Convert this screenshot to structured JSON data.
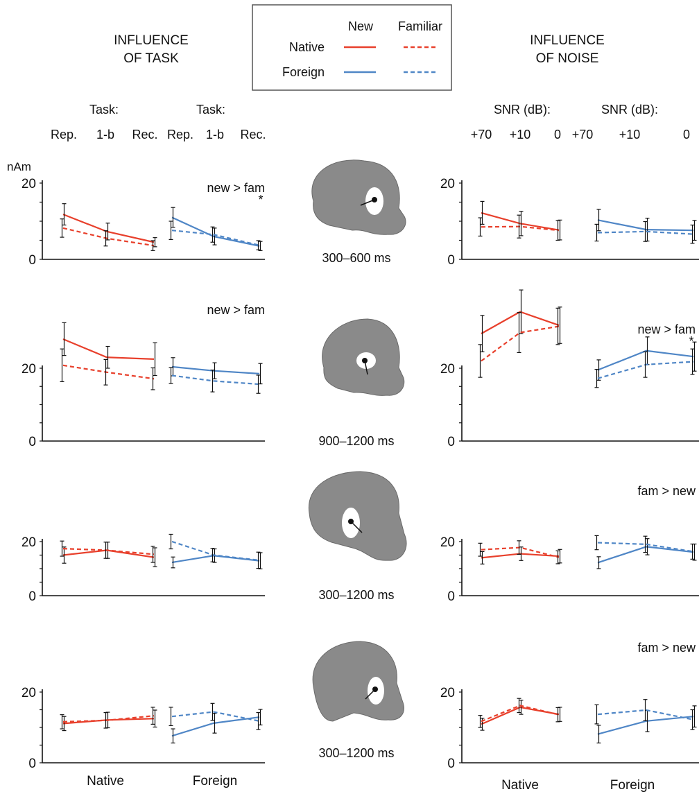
{
  "headers": {
    "task_title_line1": "INFLUENCE",
    "task_title_line2": "OF TASK",
    "noise_title_line1": "INFLUENCE",
    "noise_title_line2": "OF NOISE",
    "task_label": "Task:",
    "task_levels": [
      "Rep.",
      "1-b",
      "Rec."
    ],
    "snr_label": "SNR (dB):",
    "snr_levels": [
      "+70",
      "+10",
      "0"
    ],
    "unit_label": "nAm"
  },
  "legend": {
    "col_new": "New",
    "col_familiar": "Familiar",
    "row_native": "Native",
    "row_foreign": "Foreign"
  },
  "colors": {
    "native": "#e8402c",
    "foreign": "#4f86c6",
    "axis": "#111111",
    "brain": "#888888"
  },
  "xlabels": {
    "native": "Native",
    "foreign": "Foreign"
  },
  "time_windows": [
    "300–600 ms",
    "900–1200 ms",
    "300–1200 ms",
    "300–1200 ms"
  ],
  "chart_data": [
    {
      "type": "line",
      "panel": "task",
      "row": 1,
      "annotation": "new > fam",
      "significance": "*",
      "y_ticks": [
        0,
        20
      ],
      "ylim": [
        0,
        20
      ],
      "series": [
        {
          "name": "Native New",
          "group": "Native",
          "condition": "New",
          "values": [
            11.8,
            7.3,
            4.5
          ],
          "errors": [
            2.8,
            2.2,
            1.2
          ]
        },
        {
          "name": "Native Familiar",
          "group": "Native",
          "condition": "Familiar",
          "values": [
            8.2,
            5.5,
            3.6
          ],
          "errors": [
            2.4,
            2.0,
            1.3
          ]
        },
        {
          "name": "Foreign New",
          "group": "Foreign",
          "condition": "New",
          "values": [
            11.0,
            6.0,
            3.5
          ],
          "errors": [
            2.6,
            2.2,
            1.2
          ]
        },
        {
          "name": "Foreign Familiar",
          "group": "Foreign",
          "condition": "Familiar",
          "values": [
            7.6,
            6.5,
            3.7
          ],
          "errors": [
            2.4,
            2.0,
            1.2
          ]
        }
      ]
    },
    {
      "type": "line",
      "panel": "noise",
      "row": 1,
      "annotation": "",
      "significance": "",
      "y_ticks": [
        0,
        20
      ],
      "ylim": [
        0,
        20
      ],
      "series": [
        {
          "name": "Native New",
          "group": "Native",
          "condition": "New",
          "values": [
            12.2,
            9.4,
            7.7
          ],
          "errors": [
            3.0,
            3.2,
            2.6
          ]
        },
        {
          "name": "Native Familiar",
          "group": "Native",
          "condition": "Familiar",
          "values": [
            8.5,
            8.6,
            7.6
          ],
          "errors": [
            2.4,
            3.0,
            2.6
          ]
        },
        {
          "name": "Foreign New",
          "group": "Foreign",
          "condition": "New",
          "values": [
            10.3,
            7.8,
            7.6
          ],
          "errors": [
            2.8,
            3.0,
            2.6
          ]
        },
        {
          "name": "Foreign Familiar",
          "group": "Foreign",
          "condition": "Familiar",
          "values": [
            7.0,
            7.3,
            6.6
          ],
          "errors": [
            2.2,
            2.6,
            2.4
          ]
        }
      ]
    },
    {
      "type": "line",
      "panel": "task",
      "row": 2,
      "annotation": "new > fam",
      "significance": "",
      "y_ticks": [
        0,
        20
      ],
      "ylim": [
        0,
        36
      ],
      "series": [
        {
          "name": "Native New",
          "group": "Native",
          "condition": "New",
          "values": [
            28.0,
            23.0,
            22.5
          ],
          "errors": [
            4.5,
            3.0,
            4.5
          ]
        },
        {
          "name": "Native Familiar",
          "group": "Native",
          "condition": "Familiar",
          "values": [
            20.8,
            18.9,
            17.1
          ],
          "errors": [
            4.5,
            3.5,
            3.0
          ]
        },
        {
          "name": "Foreign New",
          "group": "Foreign",
          "condition": "New",
          "values": [
            20.4,
            19.3,
            18.5
          ],
          "errors": [
            2.5,
            2.2,
            2.8
          ]
        },
        {
          "name": "Foreign Familiar",
          "group": "Foreign",
          "condition": "Familiar",
          "values": [
            18.0,
            16.5,
            15.6
          ],
          "errors": [
            2.2,
            3.0,
            2.5
          ]
        }
      ]
    },
    {
      "type": "line",
      "panel": "noise",
      "row": 2,
      "annotation": "new > fam",
      "significance": "*",
      "y_ticks": [
        0,
        20
      ],
      "ylim": [
        0,
        36
      ],
      "series": [
        {
          "name": "Native New",
          "group": "Native",
          "condition": "New",
          "values": [
            29.5,
            35.5,
            31.8
          ],
          "errors": [
            5.0,
            6.0,
            5.0
          ]
        },
        {
          "name": "Native Familiar",
          "group": "Native",
          "condition": "Familiar",
          "values": [
            22.0,
            29.8,
            31.5
          ],
          "errors": [
            4.5,
            5.5,
            5.0
          ]
        },
        {
          "name": "Foreign New",
          "group": "Foreign",
          "condition": "New",
          "values": [
            19.5,
            24.8,
            23.2
          ],
          "errors": [
            2.8,
            3.8,
            4.0
          ]
        },
        {
          "name": "Foreign Familiar",
          "group": "Foreign",
          "condition": "Familiar",
          "values": [
            17.2,
            21.0,
            21.8
          ],
          "errors": [
            2.5,
            3.5,
            3.5
          ]
        }
      ]
    },
    {
      "type": "line",
      "panel": "task",
      "row": 3,
      "annotation": "",
      "significance": "",
      "y_ticks": [
        0,
        20
      ],
      "ylim": [
        0,
        24
      ],
      "series": [
        {
          "name": "Native New",
          "group": "Native",
          "condition": "New",
          "values": [
            15.0,
            16.8,
            14.2
          ],
          "errors": [
            3.0,
            3.0,
            3.5
          ]
        },
        {
          "name": "Native Familiar",
          "group": "Native",
          "condition": "Familiar",
          "values": [
            17.4,
            16.8,
            15.3
          ],
          "errors": [
            2.8,
            3.0,
            3.0
          ]
        },
        {
          "name": "Foreign New",
          "group": "Foreign",
          "condition": "New",
          "values": [
            12.3,
            14.8,
            12.9
          ],
          "errors": [
            2.0,
            2.5,
            3.0
          ]
        },
        {
          "name": "Foreign Familiar",
          "group": "Foreign",
          "condition": "Familiar",
          "values": [
            20.0,
            15.0,
            13.1
          ],
          "errors": [
            2.7,
            2.5,
            3.0
          ]
        }
      ]
    },
    {
      "type": "line",
      "panel": "noise",
      "row": 3,
      "annotation": "fam > new",
      "significance": "",
      "y_ticks": [
        0,
        20
      ],
      "ylim": [
        0,
        24
      ],
      "series": [
        {
          "name": "Native New",
          "group": "Native",
          "condition": "New",
          "values": [
            14.0,
            15.5,
            14.6
          ],
          "errors": [
            2.3,
            2.5,
            2.5
          ]
        },
        {
          "name": "Native Familiar",
          "group": "Native",
          "condition": "Familiar",
          "values": [
            17.0,
            17.8,
            14.2
          ],
          "errors": [
            2.4,
            2.5,
            2.4
          ]
        },
        {
          "name": "Foreign New",
          "group": "Foreign",
          "condition": "New",
          "values": [
            12.2,
            18.1,
            16.1
          ],
          "errors": [
            2.2,
            3.0,
            3.0
          ]
        },
        {
          "name": "Foreign Familiar",
          "group": "Foreign",
          "condition": "Familiar",
          "values": [
            19.6,
            19.0,
            16.3
          ],
          "errors": [
            2.6,
            3.0,
            2.8
          ]
        }
      ]
    },
    {
      "type": "line",
      "panel": "task",
      "row": 4,
      "annotation": "",
      "significance": "",
      "y_ticks": [
        0,
        20
      ],
      "ylim": [
        0,
        20
      ],
      "series": [
        {
          "name": "Native New",
          "group": "Native",
          "condition": "New",
          "values": [
            11.1,
            12.1,
            12.5
          ],
          "errors": [
            2.0,
            2.2,
            2.4
          ]
        },
        {
          "name": "Native Familiar",
          "group": "Native",
          "condition": "Familiar",
          "values": [
            11.6,
            12.0,
            13.3
          ],
          "errors": [
            2.0,
            2.2,
            2.4
          ]
        },
        {
          "name": "Foreign New",
          "group": "Foreign",
          "condition": "New",
          "values": [
            7.6,
            11.2,
            12.9
          ],
          "errors": [
            2.0,
            2.8,
            2.2
          ]
        },
        {
          "name": "Foreign Familiar",
          "group": "Foreign",
          "condition": "Familiar",
          "values": [
            13.1,
            14.4,
            11.8
          ],
          "errors": [
            2.6,
            2.4,
            2.4
          ]
        }
      ]
    },
    {
      "type": "line",
      "panel": "noise",
      "row": 4,
      "annotation": "fam > new",
      "significance": "",
      "y_ticks": [
        0,
        20
      ],
      "ylim": [
        0,
        20
      ],
      "series": [
        {
          "name": "Native New",
          "group": "Native",
          "condition": "New",
          "values": [
            10.9,
            15.7,
            13.7
          ],
          "errors": [
            1.7,
            2.0,
            2.0
          ]
        },
        {
          "name": "Native Familiar",
          "group": "Native",
          "condition": "Familiar",
          "values": [
            11.7,
            16.2,
            13.6
          ],
          "errors": [
            1.7,
            2.0,
            2.0
          ]
        },
        {
          "name": "Foreign New",
          "group": "Foreign",
          "condition": "New",
          "values": [
            8.1,
            11.8,
            13.1
          ],
          "errors": [
            2.5,
            3.0,
            3.0
          ]
        },
        {
          "name": "Foreign Familiar",
          "group": "Foreign",
          "condition": "Familiar",
          "values": [
            13.7,
            14.9,
            12.2
          ],
          "errors": [
            2.7,
            3.0,
            2.8
          ]
        }
      ]
    }
  ]
}
